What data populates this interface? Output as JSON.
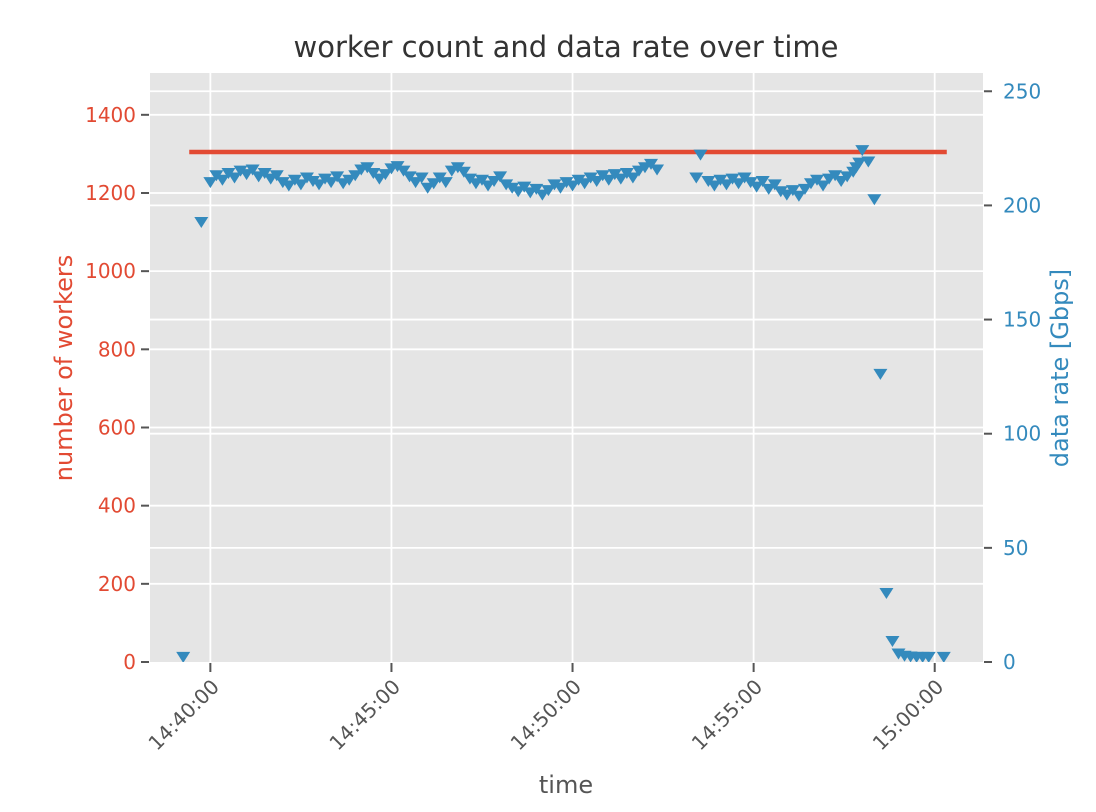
{
  "figure": {
    "background": "#ffffff",
    "plot_background": "#e5e5e5",
    "grid_color": "#ffffff",
    "tick_color": "#555555",
    "title_color": "#333333",
    "xtick_label_color": "#555555"
  },
  "chart_data": {
    "type": "scatter",
    "title": "worker count and data rate over time",
    "xlabel": "time",
    "grid": true,
    "legend": "none",
    "x_range": [
      "14:38:20",
      "15:01:20"
    ],
    "x_ticks": [
      "14:40:00",
      "14:45:00",
      "14:50:00",
      "14:55:00",
      "15:00:00"
    ],
    "left_axis": {
      "label": "number of workers",
      "color": "#e24a33",
      "range": [
        0,
        1507
      ],
      "ticks": [
        0,
        200,
        400,
        600,
        800,
        1000,
        1200,
        1400
      ]
    },
    "right_axis": {
      "label": "data rate [Gbps]",
      "color": "#348abd",
      "range": [
        0,
        258
      ],
      "ticks": [
        0,
        50,
        100,
        150,
        200,
        250
      ]
    },
    "series": [
      {
        "name": "worker count",
        "type": "line",
        "axis": "left",
        "color": "#e24a33",
        "linewidth": 4.5,
        "points": [
          [
            "14:39:25",
            1305
          ],
          [
            "15:00:20",
            1305
          ]
        ]
      },
      {
        "name": "data rate",
        "type": "scatter",
        "axis": "right",
        "color": "#348abd",
        "marker": "triangle-down",
        "points": [
          [
            "14:39:15",
            2
          ],
          [
            "14:39:45",
            192.5
          ],
          [
            "14:40:00",
            210
          ],
          [
            "14:40:10",
            213
          ],
          [
            "14:40:20",
            211
          ],
          [
            "14:40:30",
            214
          ],
          [
            "14:40:40",
            212
          ],
          [
            "14:40:50",
            215
          ],
          [
            "14:41:00",
            213.5
          ],
          [
            "14:41:10",
            215.5
          ],
          [
            "14:41:20",
            212.5
          ],
          [
            "14:41:30",
            214
          ],
          [
            "14:41:40",
            211.5
          ],
          [
            "14:41:50",
            213
          ],
          [
            "14:42:00",
            210
          ],
          [
            "14:42:10",
            208.5
          ],
          [
            "14:42:20",
            211
          ],
          [
            "14:42:30",
            209
          ],
          [
            "14:42:40",
            212
          ],
          [
            "14:42:50",
            210.5
          ],
          [
            "14:43:00",
            209
          ],
          [
            "14:43:10",
            211.5
          ],
          [
            "14:43:20",
            210
          ],
          [
            "14:43:30",
            212.5
          ],
          [
            "14:43:40",
            209.5
          ],
          [
            "14:43:50",
            211
          ],
          [
            "14:44:00",
            213
          ],
          [
            "14:44:10",
            215.5
          ],
          [
            "14:44:20",
            216.5
          ],
          [
            "14:44:30",
            214
          ],
          [
            "14:44:40",
            211.5
          ],
          [
            "14:44:50",
            213.5
          ],
          [
            "14:45:00",
            216
          ],
          [
            "14:45:10",
            217
          ],
          [
            "14:45:20",
            215
          ],
          [
            "14:45:30",
            212.5
          ],
          [
            "14:45:40",
            210
          ],
          [
            "14:45:50",
            212
          ],
          [
            "14:46:00",
            207.5
          ],
          [
            "14:46:10",
            209.5
          ],
          [
            "14:46:20",
            212
          ],
          [
            "14:46:30",
            210
          ],
          [
            "14:46:40",
            215
          ],
          [
            "14:46:50",
            216.5
          ],
          [
            "14:47:00",
            214.5
          ],
          [
            "14:47:10",
            211.5
          ],
          [
            "14:47:20",
            209.5
          ],
          [
            "14:47:30",
            211
          ],
          [
            "14:47:40",
            208.5
          ],
          [
            "14:47:50",
            210.5
          ],
          [
            "14:48:00",
            212.5
          ],
          [
            "14:48:10",
            209
          ],
          [
            "14:48:20",
            207.5
          ],
          [
            "14:48:30",
            206
          ],
          [
            "14:48:40",
            208
          ],
          [
            "14:48:50",
            205.5
          ],
          [
            "14:49:00",
            207
          ],
          [
            "14:49:10",
            204.5
          ],
          [
            "14:49:20",
            206.5
          ],
          [
            "14:49:30",
            209
          ],
          [
            "14:49:40",
            207.5
          ],
          [
            "14:49:50",
            210
          ],
          [
            "14:50:00",
            208.5
          ],
          [
            "14:50:10",
            211
          ],
          [
            "14:50:20",
            209.5
          ],
          [
            "14:50:30",
            212
          ],
          [
            "14:50:40",
            210.5
          ],
          [
            "14:50:50",
            213
          ],
          [
            "14:51:00",
            211
          ],
          [
            "14:51:10",
            213.5
          ],
          [
            "14:51:20",
            211.5
          ],
          [
            "14:51:30",
            214
          ],
          [
            "14:51:40",
            212
          ],
          [
            "14:51:50",
            215
          ],
          [
            "14:52:00",
            216.5
          ],
          [
            "14:52:10",
            218
          ],
          [
            "14:52:20",
            215.5
          ],
          [
            "14:53:25",
            212
          ],
          [
            "14:53:32",
            222
          ],
          [
            "14:53:45",
            210.5
          ],
          [
            "14:53:55",
            208.5
          ],
          [
            "14:54:05",
            211
          ],
          [
            "14:54:15",
            209
          ],
          [
            "14:54:25",
            211.5
          ],
          [
            "14:54:35",
            209.5
          ],
          [
            "14:54:45",
            212
          ],
          [
            "14:54:55",
            210
          ],
          [
            "14:55:05",
            208
          ],
          [
            "14:55:15",
            210.5
          ],
          [
            "14:55:25",
            207
          ],
          [
            "14:55:35",
            209
          ],
          [
            "14:55:45",
            206
          ],
          [
            "14:55:55",
            204.5
          ],
          [
            "14:56:05",
            206.5
          ],
          [
            "14:56:15",
            204
          ],
          [
            "14:56:25",
            207
          ],
          [
            "14:56:35",
            209.5
          ],
          [
            "14:56:45",
            211
          ],
          [
            "14:56:55",
            208.5
          ],
          [
            "14:57:05",
            211.5
          ],
          [
            "14:57:15",
            213
          ],
          [
            "14:57:25",
            210.5
          ],
          [
            "14:57:35",
            212.5
          ],
          [
            "14:57:45",
            214.5
          ],
          [
            "14:57:50",
            216.5
          ],
          [
            "14:57:55",
            218.5
          ],
          [
            "14:58:00",
            224
          ],
          [
            "14:58:10",
            219
          ],
          [
            "14:58:20",
            202.5
          ],
          [
            "14:58:30",
            126
          ],
          [
            "14:58:40",
            30
          ],
          [
            "14:58:50",
            9
          ],
          [
            "14:59:00",
            3.5
          ],
          [
            "14:59:10",
            2.5
          ],
          [
            "14:59:20",
            2.2
          ],
          [
            "14:59:30",
            2
          ],
          [
            "14:59:40",
            2
          ],
          [
            "14:59:50",
            2
          ],
          [
            "15:00:15",
            2
          ]
        ]
      }
    ]
  }
}
